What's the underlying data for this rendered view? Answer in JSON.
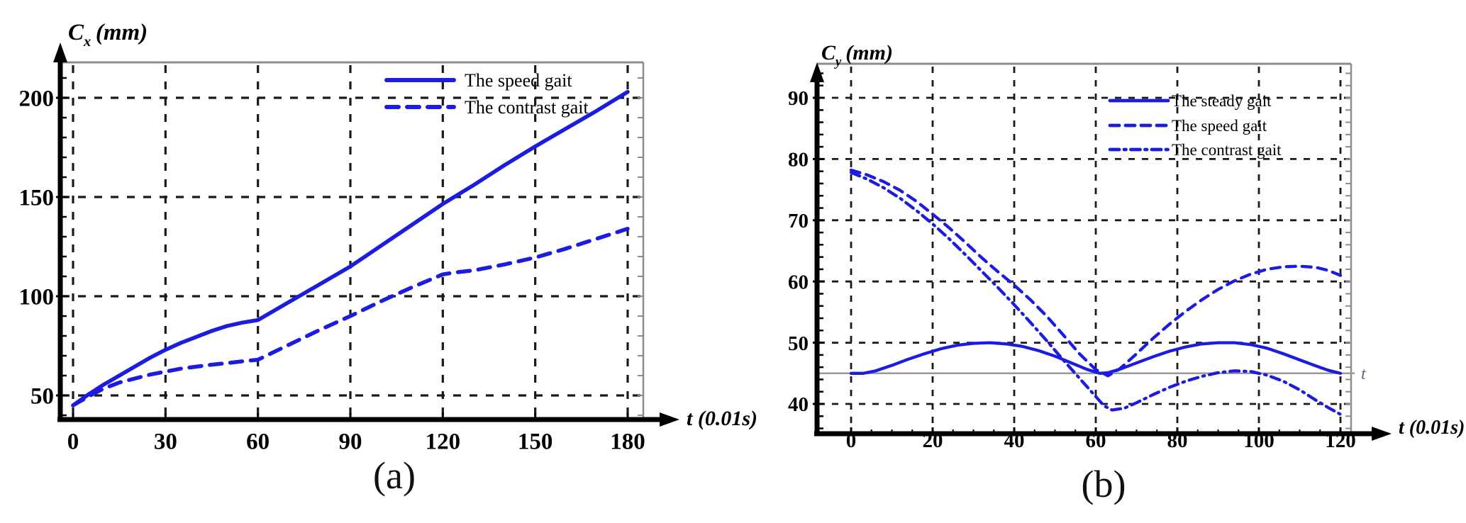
{
  "page": {
    "background": "#ffffff"
  },
  "colors": {
    "series_blue": "#1c1ce0",
    "grid": "#1a1a1a",
    "axis": "#000000",
    "border": "#8c8c8c",
    "reference_line": "#999999",
    "text": "#000000",
    "reference_label": "#666688"
  },
  "captions": {
    "a": "(a)",
    "b": "(b)"
  },
  "chart_data": [
    {
      "id": "a",
      "type": "line",
      "y_axis_title": {
        "symbol": "C",
        "subscript": "x",
        "unit": "(mm)"
      },
      "x_axis_title": "t (0.01s)",
      "x_ticks": [
        0,
        30,
        60,
        90,
        120,
        150,
        180
      ],
      "y_ticks": [
        50,
        100,
        150,
        200
      ],
      "xlim": [
        0,
        185
      ],
      "ylim": [
        38,
        218
      ],
      "grid": true,
      "legend": {
        "position": "top-right-inside"
      },
      "series": [
        {
          "name": "The speed gait",
          "style": "solid",
          "x": [
            0,
            5,
            10,
            15,
            20,
            25,
            30,
            35,
            40,
            45,
            50,
            55,
            60,
            70,
            80,
            90,
            100,
            110,
            120,
            130,
            140,
            150,
            160,
            170,
            180
          ],
          "y": [
            45,
            50.5,
            55.5,
            60,
            64.5,
            69,
            73,
            76.5,
            79.5,
            82.5,
            85,
            86.7,
            88,
            97,
            106,
            115,
            125.5,
            136,
            146.5,
            156,
            166,
            175.5,
            184.5,
            193.5,
            203
          ]
        },
        {
          "name": "The contrast gait",
          "style": "dashed",
          "x": [
            0,
            5,
            10,
            15,
            20,
            25,
            30,
            35,
            40,
            45,
            50,
            55,
            60,
            70,
            80,
            90,
            100,
            110,
            120,
            124,
            130,
            140,
            150,
            160,
            170,
            180
          ],
          "y": [
            45,
            49.5,
            53.5,
            56.5,
            58.5,
            60.5,
            62,
            63.5,
            64.5,
            65.5,
            66.3,
            67.2,
            68,
            75.5,
            83,
            90,
            97.5,
            104.5,
            111,
            112,
            113,
            116,
            119.5,
            124,
            129,
            134
          ]
        }
      ]
    },
    {
      "id": "b",
      "type": "line",
      "y_axis_title": {
        "symbol": "C",
        "subscript": "y",
        "unit": "(mm)"
      },
      "x_axis_title": "t (0.01s)",
      "x_ticks": [
        0,
        20,
        40,
        60,
        80,
        100,
        120
      ],
      "y_ticks": [
        40,
        50,
        60,
        70,
        80,
        90
      ],
      "xlim": [
        0,
        123
      ],
      "ylim": [
        35,
        95.5
      ],
      "grid": true,
      "reference_line": {
        "y": 45,
        "label": "t"
      },
      "legend": {
        "position": "top-right-inside"
      },
      "series": [
        {
          "name": "The steady gait",
          "style": "solid",
          "x": [
            0,
            3,
            6,
            10,
            14,
            18,
            22,
            26,
            30,
            34,
            38,
            42,
            46,
            50,
            54,
            58,
            61,
            63,
            66,
            70,
            74,
            78,
            82,
            86,
            90,
            94,
            98,
            102,
            106,
            110,
            114,
            117,
            120
          ],
          "y": [
            45,
            45,
            45.4,
            46.3,
            47.3,
            48.2,
            49,
            49.6,
            49.9,
            50,
            49.8,
            49.4,
            48.7,
            47.8,
            46.7,
            45.6,
            45,
            45.1,
            45.7,
            46.7,
            47.7,
            48.6,
            49.3,
            49.8,
            50,
            50,
            49.7,
            49.1,
            48.2,
            47.2,
            46.2,
            45.5,
            45
          ]
        },
        {
          "name": "The speed gait",
          "style": "dashed",
          "x": [
            0,
            4,
            8,
            12,
            16,
            20,
            24,
            28,
            32,
            36,
            40,
            44,
            48,
            52,
            56,
            60,
            63,
            66,
            70,
            74,
            78,
            82,
            86,
            90,
            94,
            98,
            102,
            106,
            110,
            114,
            117,
            120
          ],
          "y": [
            78.2,
            77.4,
            76.3,
            74.9,
            73.1,
            71,
            68.8,
            66.4,
            63.9,
            61.6,
            59.4,
            57,
            54.3,
            51.3,
            48.2,
            45.6,
            44.6,
            45.8,
            48.2,
            50.7,
            53,
            55.1,
            57,
            58.7,
            60.1,
            61.2,
            62,
            62.4,
            62.5,
            62.3,
            61.8,
            61
          ]
        },
        {
          "name": "The contrast gait",
          "style": "dashdot",
          "x": [
            0,
            4,
            8,
            12,
            16,
            20,
            24,
            28,
            32,
            36,
            40,
            44,
            48,
            52,
            56,
            60,
            62,
            64,
            67,
            70,
            74,
            78,
            82,
            86,
            90,
            94,
            98,
            102,
            106,
            110,
            114,
            117,
            120
          ],
          "y": [
            77.8,
            76.7,
            75.3,
            73.6,
            71.6,
            69.4,
            67,
            64.4,
            61.7,
            59,
            56.2,
            53.3,
            50.3,
            47.2,
            44.2,
            41.2,
            39.7,
            39,
            39.3,
            40.2,
            41.5,
            42.7,
            43.7,
            44.5,
            45.1,
            45.4,
            45.3,
            44.7,
            43.7,
            42.3,
            40.6,
            39.4,
            38.3
          ]
        }
      ]
    }
  ]
}
